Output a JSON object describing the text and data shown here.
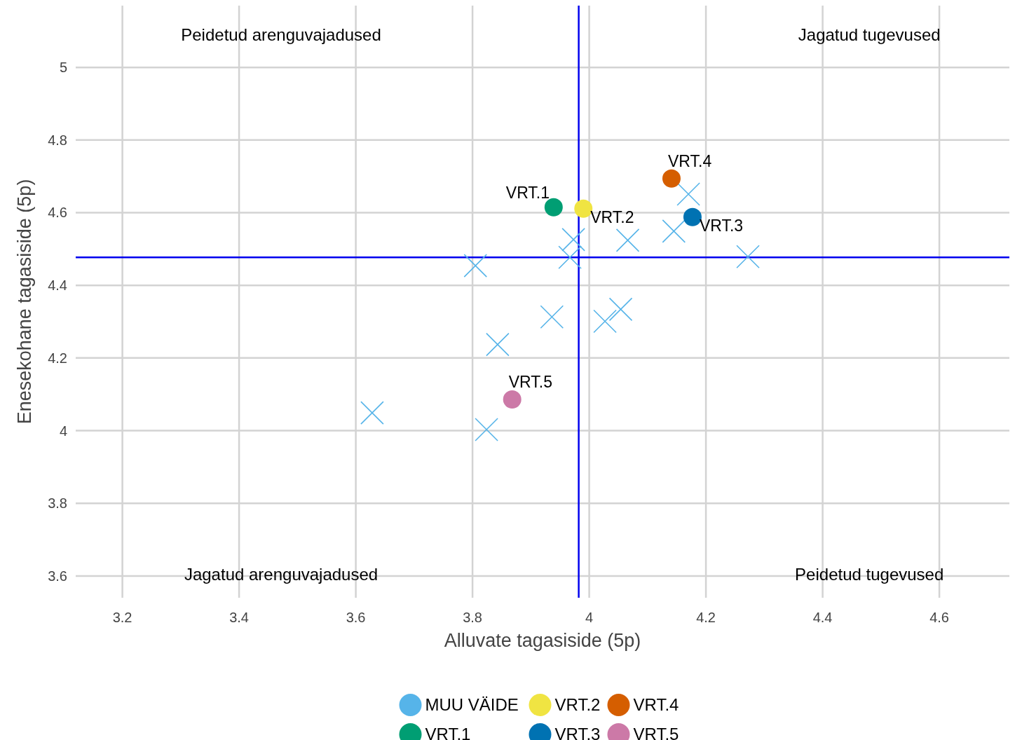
{
  "chart_data": {
    "type": "scatter",
    "xlabel": "Alluvate tagasiside (5p)",
    "ylabel": "Enesekohane tagasiside (5p)",
    "xlim": [
      3.12,
      4.72
    ],
    "ylim": [
      3.54,
      5.17
    ],
    "xticks": [
      3.2,
      3.4,
      3.6,
      3.8,
      4,
      4.2,
      4.4,
      4.6
    ],
    "yticks": [
      3.6,
      3.8,
      4,
      4.2,
      4.4,
      4.6,
      4.8,
      5
    ],
    "grid": true,
    "legend": "bottom",
    "series": [
      {
        "name": "MUU VÄIDE",
        "color": "#56b4e9",
        "marker": "cross",
        "x": [
          3.628,
          3.824,
          3.843,
          3.936,
          3.805,
          3.967,
          3.973,
          4.027,
          4.054,
          4.066,
          4.145,
          4.17,
          4.272
        ],
        "values": [
          4.049,
          4.003,
          4.237,
          4.313,
          4.454,
          4.477,
          4.526,
          4.301,
          4.334,
          4.524,
          4.549,
          4.651,
          4.479
        ]
      },
      {
        "name": "VRT.1",
        "color": "#009e73",
        "marker": "circle",
        "x": [
          3.939
        ],
        "values": [
          4.615
        ]
      },
      {
        "name": "VRT.2",
        "color": "#f0e442",
        "marker": "circle",
        "x": [
          3.99
        ],
        "values": [
          4.611
        ]
      },
      {
        "name": "VRT.3",
        "color": "#0072b2",
        "marker": "circle",
        "x": [
          4.177
        ],
        "values": [
          4.588
        ]
      },
      {
        "name": "VRT.4",
        "color": "#d55e00",
        "marker": "circle",
        "x": [
          4.141
        ],
        "values": [
          4.694
        ]
      },
      {
        "name": "VRT.5",
        "color": "#cc79a7",
        "marker": "circle",
        "x": [
          3.868
        ],
        "values": [
          4.086
        ]
      }
    ],
    "ref_lines": [
      {
        "axis": "x",
        "value": 3.982,
        "color": "#0000ee"
      },
      {
        "axis": "y",
        "value": 4.477,
        "color": "#0000ee"
      }
    ],
    "annotations": [
      "Peidetud arenguvajadused",
      "Jagatud tugevused",
      "Jagatud arenguvajadused",
      "Peidetud tugevused"
    ]
  }
}
